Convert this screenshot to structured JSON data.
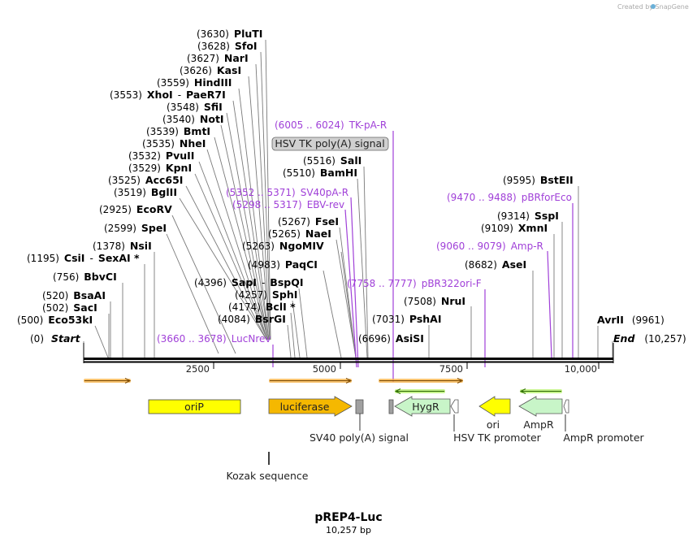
{
  "header": {
    "watermark": "Created by SnapGene"
  },
  "map": {
    "title": "pREP4-Luc",
    "subtitle": "10,257 bp",
    "start_label": "Start",
    "start_pos": "(0)",
    "end_label": "End",
    "end_pos": "(10,257)",
    "ticks": [
      "2500",
      "5000",
      "7500",
      "10,000"
    ]
  },
  "sites": [
    {
      "pos": "(3630)",
      "name": "PluTI"
    },
    {
      "pos": "(3628)",
      "name": "SfoI"
    },
    {
      "pos": "(3627)",
      "name": "NarI"
    },
    {
      "pos": "(3626)",
      "name": "KasI"
    },
    {
      "pos": "(3559)",
      "name": "HindIII"
    },
    {
      "pos": "(3553)",
      "name": "XhoI",
      "extra": "PaeR7I"
    },
    {
      "pos": "(3548)",
      "name": "SfiI"
    },
    {
      "pos": "(3540)",
      "name": "NotI"
    },
    {
      "pos": "(3539)",
      "name": "BmtI"
    },
    {
      "pos": "(3535)",
      "name": "NheI"
    },
    {
      "pos": "(3532)",
      "name": "PvuII"
    },
    {
      "pos": "(3529)",
      "name": "KpnI"
    },
    {
      "pos": "(3525)",
      "name": "Acc65I"
    },
    {
      "pos": "(3519)",
      "name": "BglII"
    },
    {
      "pos": "(2925)",
      "name": "EcoRV"
    },
    {
      "pos": "(2599)",
      "name": "SpeI"
    },
    {
      "pos": "(1378)",
      "name": "NsiI"
    },
    {
      "pos": "(1195)",
      "name": "CsiI",
      "extra": "SexAI *"
    },
    {
      "pos": "(756)",
      "name": "BbvCI"
    },
    {
      "pos": "(520)",
      "name": "BsaAI"
    },
    {
      "pos": "(502)",
      "name": "SacI"
    },
    {
      "pos": "(500)",
      "name": "Eco53kI"
    },
    {
      "pos": "(4396)",
      "name": "SapI",
      "extra": "BspQI"
    },
    {
      "pos": "(4257)",
      "name": "SphI"
    },
    {
      "pos": "(4174)",
      "name": "BclI *"
    },
    {
      "pos": "(4084)",
      "name": "BsrGI"
    },
    {
      "pos": "(4983)",
      "name": "PaqCI"
    },
    {
      "pos": "(5263)",
      "name": "NgoMIV"
    },
    {
      "pos": "(5265)",
      "name": "NaeI"
    },
    {
      "pos": "(5267)",
      "name": "FseI"
    },
    {
      "pos": "(5510)",
      "name": "BamHI"
    },
    {
      "pos": "(5516)",
      "name": "SalI"
    },
    {
      "pos": "(6696)",
      "name": "AsiSI"
    },
    {
      "pos": "(7031)",
      "name": "PshAI"
    },
    {
      "pos": "(7508)",
      "name": "NruI"
    },
    {
      "pos": "(8682)",
      "name": "AseI"
    },
    {
      "pos": "(9109)",
      "name": "XmnI"
    },
    {
      "pos": "(9314)",
      "name": "SspI"
    },
    {
      "pos": "(9595)",
      "name": "BstEII"
    },
    {
      "pos": "(9961)",
      "name": "AvrII"
    }
  ],
  "primers": [
    {
      "range": "(6005 .. 6024)",
      "name": "TK-pA-R"
    },
    {
      "range": "(5352 .. 5371)",
      "name": "SV40pA-R"
    },
    {
      "range": "(5298 .. 5317)",
      "name": "EBV-rev"
    },
    {
      "range": "(3660 .. 3678)",
      "name": "LucNrev"
    },
    {
      "range": "(7758 .. 7777)",
      "name": "pBR322ori-F"
    },
    {
      "range": "(9470 .. 9488)",
      "name": "pBRforEco"
    },
    {
      "range": "(9060 .. 9079)",
      "name": "Amp-R"
    }
  ],
  "features": {
    "hsv_tk_polya_box": "HSV TK poly(A) signal",
    "oriP": "oriP",
    "luciferase": "luciferase",
    "hygR": "HygR",
    "ori": "ori",
    "ampR": "AmpR",
    "sv40_polya": "SV40 poly(A) signal",
    "hsv_tk_promoter": "HSV TK promoter",
    "ampR_promoter": "AmpR promoter",
    "kozak": "Kozak sequence"
  },
  "colors": {
    "primer": "#a040d8",
    "orf_yellow": "#ffff00",
    "luciferase": "#f5b800",
    "hygR": "#c8f5c8",
    "signal_gray": "#a0a0a0",
    "primer_bind_orange": "#f7b040",
    "primer_bind_green": "#b8f070"
  }
}
